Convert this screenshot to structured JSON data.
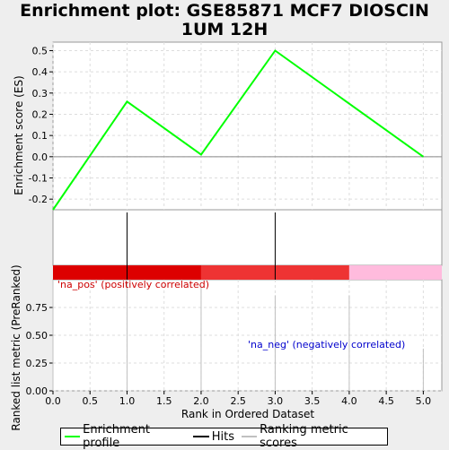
{
  "title": "Enrichment plot: GSE85871 MCF7 DIOSCIN 1UM 12H",
  "colors": {
    "es_line": "#00ff00",
    "hits": "#000000",
    "ranking": "#c0c0c0",
    "bar_red": "#dd0000",
    "bar_mid": "#ee3333",
    "bar_pink": "#ffbbdd",
    "pos_label": "#cc0000",
    "neg_label": "#0000cc",
    "grid": "#dddddd"
  },
  "chart_data": [
    {
      "type": "line",
      "panel": "enrichment-score",
      "ylabel": "Enrichment score (ES)",
      "ylim": [
        -0.25,
        0.54
      ],
      "yticks": [
        -0.2,
        -0.1,
        0.0,
        0.1,
        0.2,
        0.3,
        0.4,
        0.5
      ],
      "ytick_labels": [
        "-0.2",
        "-0.1",
        "0.0",
        "0.1",
        "0.2",
        "0.3",
        "0.4",
        "0.5"
      ],
      "grid": true,
      "series": [
        {
          "name": "Enrichment profile",
          "x": [
            0,
            1,
            2,
            3,
            5
          ],
          "y": [
            -0.25,
            0.26,
            0.01,
            0.5,
            0.0
          ]
        }
      ]
    },
    {
      "type": "bar",
      "panel": "hits",
      "hit_positions": [
        1,
        3
      ]
    },
    {
      "type": "heatmap",
      "panel": "ranked-list-bar",
      "segments": [
        {
          "from": 0,
          "to": 2,
          "color": "#dd0000"
        },
        {
          "from": 2,
          "to": 4,
          "color": "#ee3333"
        },
        {
          "from": 4,
          "to": 5.25,
          "color": "#ffbbdd"
        }
      ]
    },
    {
      "type": "bar",
      "panel": "ranking-metric",
      "ylabel": "Ranked list metric (PreRanked)",
      "xlabel": "Rank in Ordered Dataset",
      "xlim": [
        0,
        5.25
      ],
      "ylim": [
        0,
        1.0
      ],
      "xticks": [
        0,
        0.5,
        1,
        1.5,
        2,
        2.5,
        3,
        3.5,
        4,
        4.5,
        5
      ],
      "xtick_labels": [
        "0.0",
        "0.5",
        "1.0",
        "1.5",
        "2.0",
        "2.5",
        "3.0",
        "3.5",
        "4.0",
        "4.5",
        "5.0"
      ],
      "yticks": [
        0,
        0.25,
        0.5,
        0.75
      ],
      "ytick_labels": [
        "0.00",
        "0.25",
        "0.50",
        "0.75"
      ],
      "grid": true,
      "x": [
        0,
        1,
        2,
        3,
        4,
        5
      ],
      "values": [
        1.0,
        0.98,
        0.93,
        0.86,
        0.86,
        0.38
      ],
      "annotations": {
        "pos": "'na_pos' (positively correlated)",
        "neg": "'na_neg' (negatively correlated)"
      }
    }
  ],
  "legend": {
    "items": [
      "Enrichment profile",
      "Hits",
      "Ranking metric scores"
    ]
  }
}
